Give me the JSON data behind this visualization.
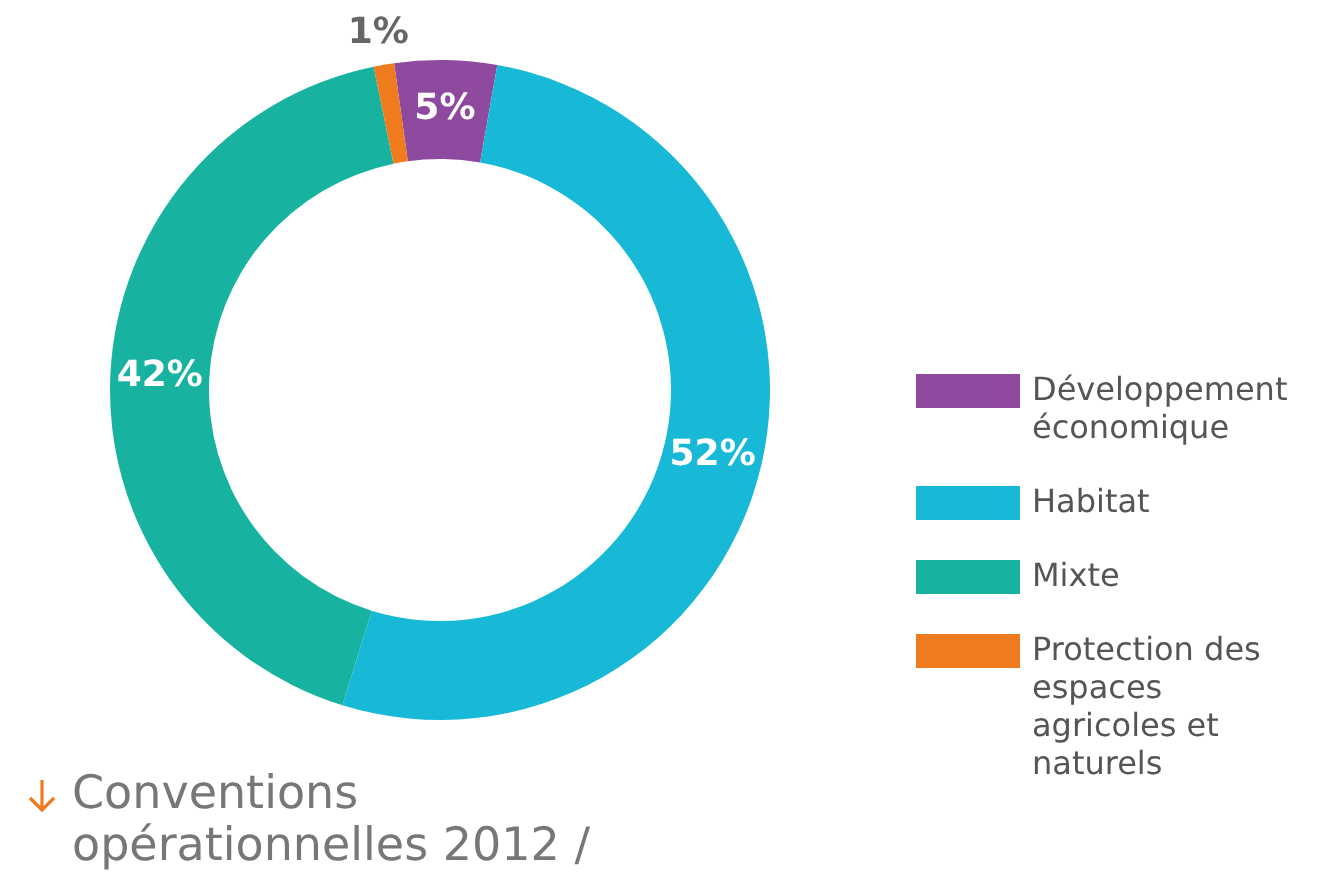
{
  "chart_data": {
    "type": "donut",
    "title": "Conventions opérationnelles 2012 /",
    "categories": [
      "Développement économique",
      "Habitat",
      "Mixte",
      "Protection des espaces agricoles et naturels"
    ],
    "values": [
      5,
      52,
      42,
      1
    ],
    "colors": [
      "#8e4a9e",
      "#17b9d6",
      "#17b3a0",
      "#f07a1e"
    ],
    "value_labels": [
      "5%",
      "52%",
      "42%",
      "1%"
    ],
    "legend": "right"
  }
}
